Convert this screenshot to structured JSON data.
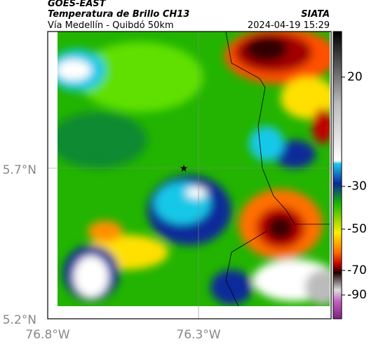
{
  "header": {
    "source": "GOES-EAST",
    "title": "Temperatura de Brillo CH13",
    "subtitle": "Vía Medellín - Quibdó 50km",
    "agency": "SIATA",
    "datetime": "2024-04-19 15:29"
  },
  "map": {
    "lat_ticks": [
      "5.7°N",
      "5.2°N"
    ],
    "lon_ticks": [
      "76.8°W",
      "76.3°W"
    ]
  },
  "colorbar": {
    "ticks": [
      20,
      -30,
      -50,
      -70,
      -90
    ]
  }
}
